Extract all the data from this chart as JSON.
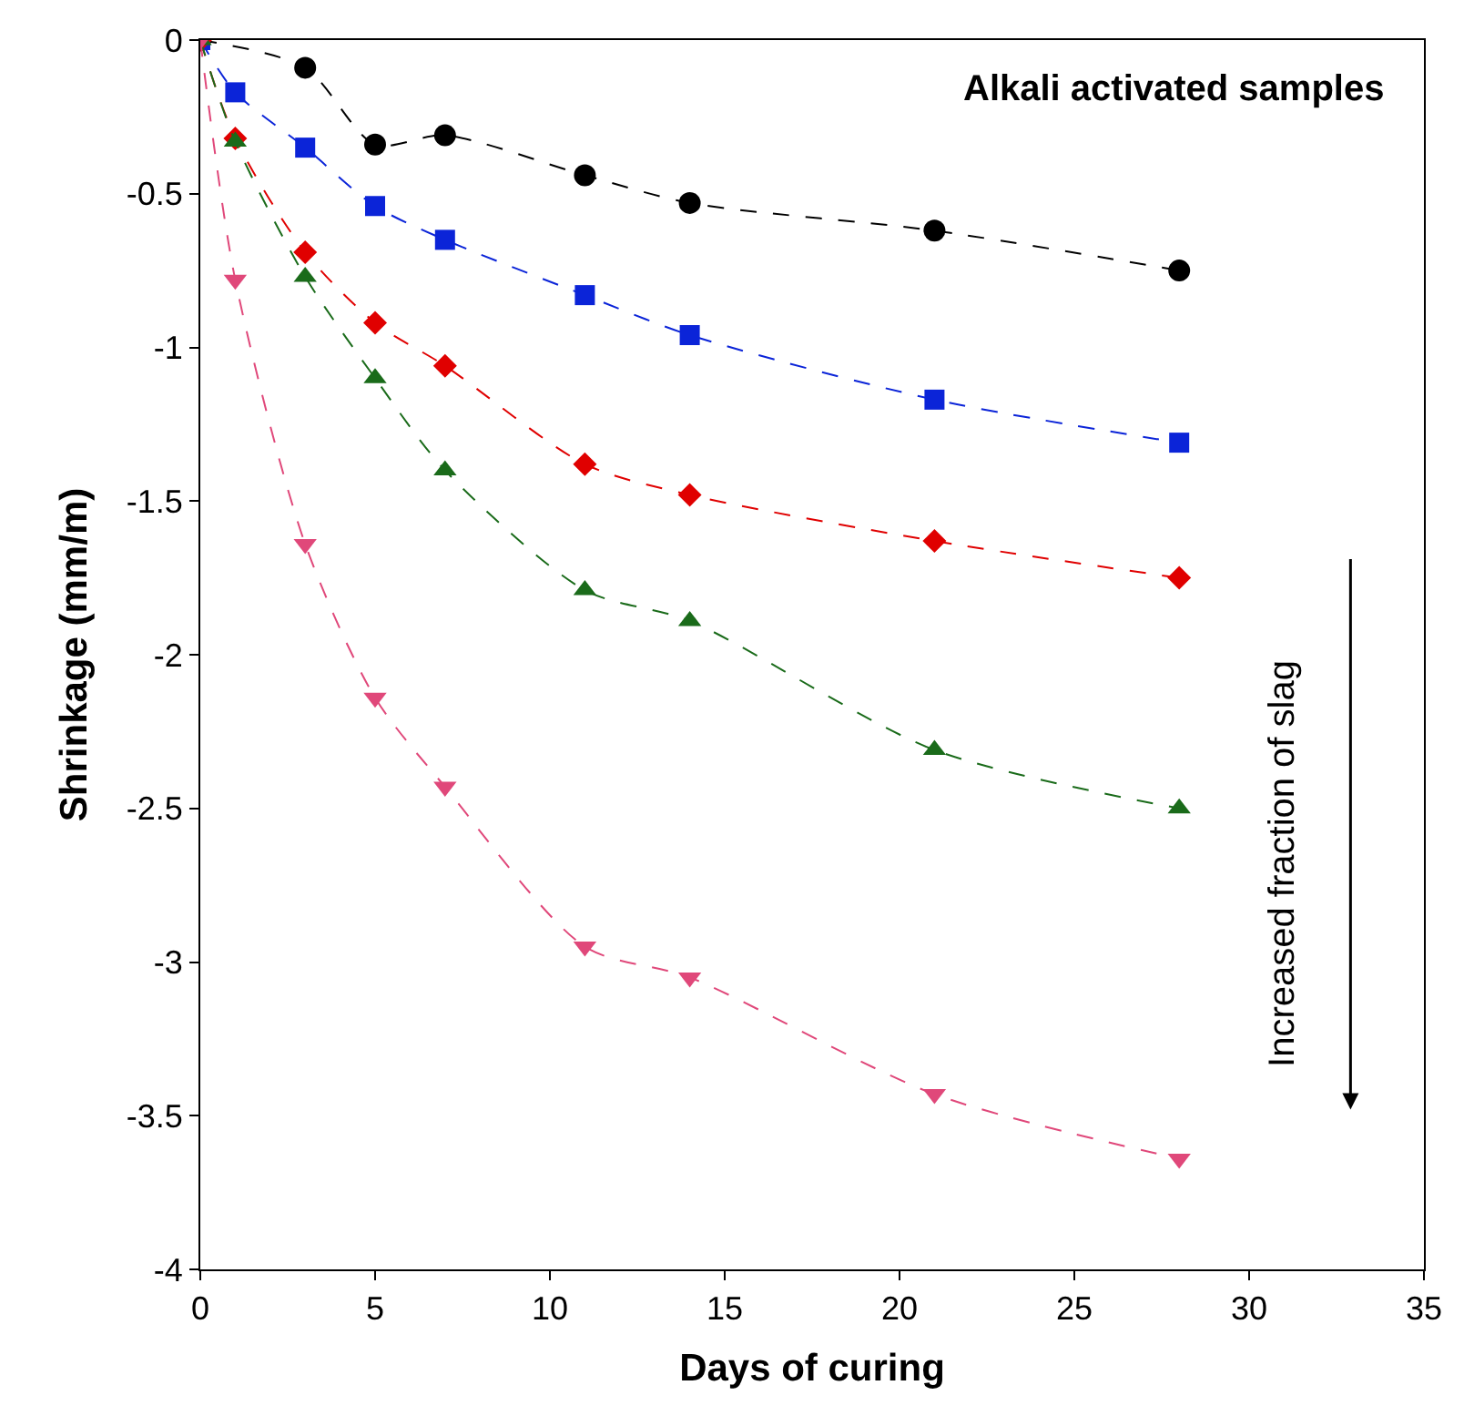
{
  "chart_data": {
    "type": "line",
    "xlabel": "Days of curing",
    "ylabel": "Shrinkage (mm/m)",
    "xlim": [
      0,
      35
    ],
    "xticks": [
      0,
      5,
      10,
      15,
      20,
      25,
      30,
      35
    ],
    "ylim": [
      -4,
      0
    ],
    "yticks": [
      -4,
      -3.5,
      -3,
      -2.5,
      -2,
      -1.5,
      -1,
      -0.5,
      0
    ],
    "line_style": "dashed",
    "annotations": [
      "Alkali activated samples",
      "Increased fraction of slag"
    ],
    "series": [
      {
        "color": "#000000",
        "marker": "circle",
        "x": [
          0,
          3,
          5,
          7,
          11,
          14,
          21,
          28
        ],
        "values": [
          0,
          -0.09,
          -0.34,
          -0.31,
          -0.44,
          -0.53,
          -0.62,
          -0.75
        ]
      },
      {
        "color": "#0b24d8",
        "marker": "square",
        "x": [
          0,
          1,
          3,
          5,
          7,
          11,
          14,
          21,
          28
        ],
        "values": [
          0,
          -0.17,
          -0.35,
          -0.54,
          -0.65,
          -0.83,
          -0.96,
          -1.17,
          -1.31
        ]
      },
      {
        "color": "#e00000",
        "marker": "diamond",
        "x": [
          0,
          1,
          3,
          5,
          7,
          11,
          14,
          21,
          28
        ],
        "values": [
          0,
          -0.32,
          -0.69,
          -0.92,
          -1.06,
          -1.38,
          -1.48,
          -1.63,
          -1.75
        ]
      },
      {
        "color": "#1a6b1a",
        "marker": "triangle",
        "x": [
          0,
          1,
          3,
          5,
          7,
          11,
          14,
          21,
          28
        ],
        "values": [
          0,
          -0.33,
          -0.77,
          -1.1,
          -1.4,
          -1.79,
          -1.89,
          -2.31,
          -2.5
        ]
      },
      {
        "color": "#e0487a",
        "marker": "triangle-down",
        "x": [
          0,
          1,
          3,
          5,
          7,
          11,
          14,
          21,
          28
        ],
        "values": [
          0,
          -0.78,
          -1.64,
          -2.14,
          -2.43,
          -2.95,
          -3.05,
          -3.43,
          -3.64
        ]
      }
    ]
  }
}
